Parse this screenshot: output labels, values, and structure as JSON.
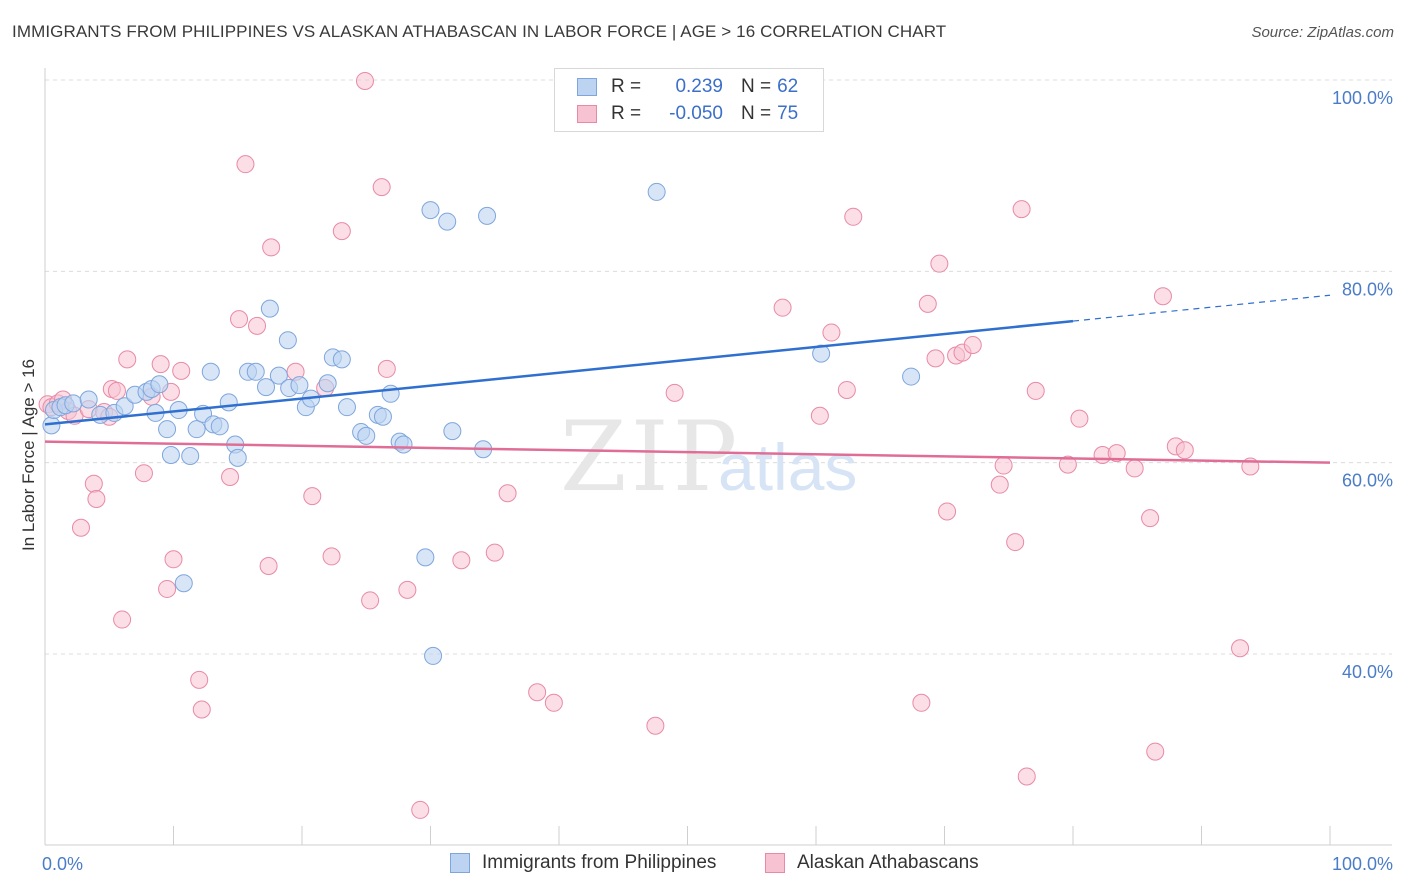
{
  "header": {
    "title": "IMMIGRANTS FROM PHILIPPINES VS ALASKAN ATHABASCAN IN LABOR FORCE | AGE > 16 CORRELATION CHART",
    "source": "Source: ZipAtlas.com"
  },
  "watermark": {
    "zip": "ZIP",
    "atlas": "atlas"
  },
  "legend": {
    "rows": [
      {
        "r_label": "R =",
        "r_value": "0.239",
        "n_label": "N =",
        "n_value": "62"
      },
      {
        "r_label": "R =",
        "r_value": "-0.050",
        "n_label": "N =",
        "n_value": "75"
      }
    ]
  },
  "bottom_legend": {
    "items": [
      {
        "label": "Immigrants from Philippines"
      },
      {
        "label": "Alaskan Athabascans"
      }
    ]
  },
  "colors": {
    "blue_fill": "#bcd3f2",
    "blue_stroke": "#7ea6dc",
    "blue_line": "#2f6fcf",
    "pink_fill": "#f7c3d2",
    "pink_stroke": "#e88aa6",
    "pink_line": "#e06d96",
    "grid": "#dcdcdc",
    "tick_label": "#4a7cc7"
  },
  "chart_data": {
    "type": "scatter",
    "title": "IMMIGRANTS FROM PHILIPPINES VS ALASKAN ATHABASCAN IN LABOR FORCE | AGE > 16 CORRELATION CHART",
    "xlabel": "",
    "ylabel": "In Labor Force | Age > 16",
    "xlim": [
      0,
      100
    ],
    "ylim": [
      20,
      102
    ],
    "x_ticks": [
      "0.0%",
      "100.0%"
    ],
    "y_ticks": [
      {
        "value": 100,
        "label": "100.0%"
      },
      {
        "value": 80,
        "label": "80.0%"
      },
      {
        "value": 60,
        "label": "60.0%"
      },
      {
        "value": 40,
        "label": "40.0%"
      }
    ],
    "grid": true,
    "series": [
      {
        "name": "Immigrants from Philippines",
        "color": "blue",
        "trend": {
          "x0": 0,
          "y0": 64.0,
          "x1": 80,
          "y1": 74.8,
          "dash_to_x": 100,
          "dash_to_y": 77.5
        },
        "points": [
          [
            0.5,
            63.9
          ],
          [
            0.7,
            65.5
          ],
          [
            1.2,
            65.8
          ],
          [
            1.6,
            66.0
          ],
          [
            2.2,
            66.2
          ],
          [
            3.4,
            66.6
          ],
          [
            4.3,
            65.0
          ],
          [
            5.4,
            65.2
          ],
          [
            6.2,
            65.9
          ],
          [
            7.0,
            67.1
          ],
          [
            7.9,
            67.4
          ],
          [
            8.3,
            67.7
          ],
          [
            8.6,
            65.2
          ],
          [
            8.9,
            68.2
          ],
          [
            9.5,
            63.5
          ],
          [
            9.8,
            60.8
          ],
          [
            10.4,
            65.5
          ],
          [
            10.8,
            47.4
          ],
          [
            11.3,
            60.7
          ],
          [
            11.8,
            63.5
          ],
          [
            12.3,
            65.1
          ],
          [
            12.9,
            69.5
          ],
          [
            13.1,
            64.0
          ],
          [
            13.6,
            63.8
          ],
          [
            14.3,
            66.3
          ],
          [
            14.8,
            61.9
          ],
          [
            15.0,
            60.5
          ],
          [
            15.8,
            69.5
          ],
          [
            16.4,
            69.5
          ],
          [
            17.2,
            67.9
          ],
          [
            17.5,
            76.1
          ],
          [
            18.2,
            69.1
          ],
          [
            18.9,
            72.8
          ],
          [
            19.0,
            67.8
          ],
          [
            19.8,
            68.1
          ],
          [
            20.3,
            65.8
          ],
          [
            20.7,
            66.7
          ],
          [
            22.0,
            68.3
          ],
          [
            22.4,
            71.0
          ],
          [
            23.1,
            70.8
          ],
          [
            23.5,
            65.8
          ],
          [
            24.6,
            63.2
          ],
          [
            25.0,
            62.8
          ],
          [
            25.9,
            65.0
          ],
          [
            26.3,
            64.8
          ],
          [
            26.9,
            67.2
          ],
          [
            27.6,
            62.2
          ],
          [
            27.9,
            61.9
          ],
          [
            29.6,
            50.1
          ],
          [
            30.0,
            86.4
          ],
          [
            30.2,
            39.8
          ],
          [
            31.3,
            85.2
          ],
          [
            31.7,
            63.3
          ],
          [
            34.1,
            61.4
          ],
          [
            34.4,
            85.8
          ],
          [
            47.6,
            88.3
          ],
          [
            60.4,
            71.4
          ],
          [
            67.4,
            69.0
          ]
        ]
      },
      {
        "name": "Alaskan Athabascans",
        "color": "pink",
        "trend": {
          "x0": 0,
          "y0": 62.2,
          "x1": 100,
          "y1": 60.0
        },
        "points": [
          [
            0.2,
            66.1
          ],
          [
            0.5,
            65.8
          ],
          [
            1.0,
            66.2
          ],
          [
            1.4,
            66.6
          ],
          [
            1.8,
            65.4
          ],
          [
            2.3,
            64.9
          ],
          [
            2.8,
            53.2
          ],
          [
            3.4,
            65.6
          ],
          [
            3.8,
            57.8
          ],
          [
            4.0,
            56.2
          ],
          [
            4.6,
            65.3
          ],
          [
            5.0,
            64.8
          ],
          [
            5.2,
            67.7
          ],
          [
            5.6,
            67.5
          ],
          [
            6.0,
            43.6
          ],
          [
            6.4,
            70.8
          ],
          [
            7.7,
            58.9
          ],
          [
            8.3,
            66.9
          ],
          [
            9.0,
            70.3
          ],
          [
            9.5,
            46.8
          ],
          [
            9.8,
            67.4
          ],
          [
            10.0,
            49.9
          ],
          [
            10.6,
            69.6
          ],
          [
            12.0,
            37.3
          ],
          [
            12.2,
            34.2
          ],
          [
            14.4,
            58.5
          ],
          [
            15.1,
            75.0
          ],
          [
            15.6,
            91.2
          ],
          [
            16.5,
            74.3
          ],
          [
            17.4,
            49.2
          ],
          [
            17.6,
            82.5
          ],
          [
            19.5,
            69.5
          ],
          [
            20.8,
            56.5
          ],
          [
            21.8,
            67.8
          ],
          [
            22.3,
            50.2
          ],
          [
            23.1,
            84.2
          ],
          [
            24.9,
            99.9
          ],
          [
            25.3,
            45.6
          ],
          [
            26.2,
            88.8
          ],
          [
            26.6,
            69.8
          ],
          [
            28.2,
            46.7
          ],
          [
            29.2,
            23.7
          ],
          [
            32.4,
            49.8
          ],
          [
            35.0,
            50.6
          ],
          [
            36.0,
            56.8
          ],
          [
            38.3,
            36.0
          ],
          [
            39.6,
            34.9
          ],
          [
            47.5,
            32.5
          ],
          [
            49.0,
            67.3
          ],
          [
            57.4,
            76.2
          ],
          [
            60.3,
            64.9
          ],
          [
            61.2,
            73.6
          ],
          [
            62.4,
            67.6
          ],
          [
            62.9,
            85.7
          ],
          [
            68.2,
            34.9
          ],
          [
            68.7,
            76.6
          ],
          [
            69.3,
            70.9
          ],
          [
            69.6,
            80.8
          ],
          [
            70.2,
            54.9
          ],
          [
            70.9,
            71.2
          ],
          [
            71.4,
            71.5
          ],
          [
            72.2,
            72.3
          ],
          [
            74.3,
            57.7
          ],
          [
            74.6,
            59.7
          ],
          [
            75.5,
            51.7
          ],
          [
            76.0,
            86.5
          ],
          [
            76.4,
            27.2
          ],
          [
            77.1,
            67.5
          ],
          [
            79.6,
            59.8
          ],
          [
            80.5,
            64.6
          ],
          [
            82.3,
            60.8
          ],
          [
            83.4,
            61.0
          ],
          [
            84.8,
            59.4
          ],
          [
            86.0,
            54.2
          ],
          [
            86.4,
            29.8
          ],
          [
            87.0,
            77.4
          ],
          [
            88.0,
            61.7
          ],
          [
            88.7,
            61.3
          ],
          [
            93.0,
            40.6
          ],
          [
            93.8,
            59.6
          ]
        ]
      }
    ]
  }
}
